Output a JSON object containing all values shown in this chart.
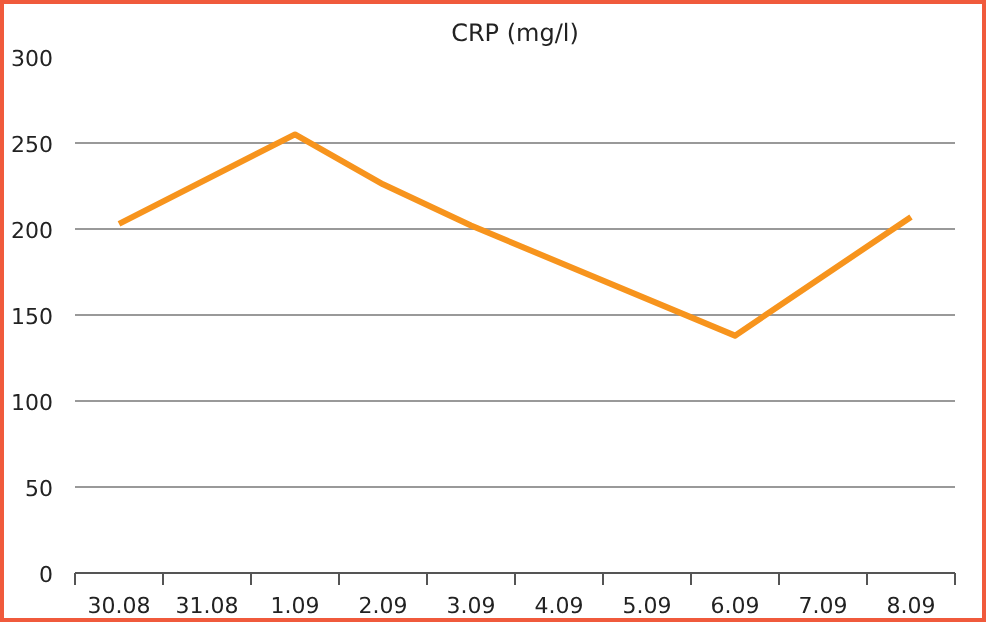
{
  "chart_data": {
    "type": "line",
    "title": "CRP (mg/l)",
    "categories": [
      "30.08",
      "31.08",
      "1.09",
      "2.09",
      "3.09",
      "4.09",
      "5.09",
      "6.09",
      "7.09",
      "8.09"
    ],
    "series": [
      {
        "color": "#f7941d",
        "values": [
          203,
          null,
          255,
          226,
          202,
          null,
          null,
          138,
          null,
          207
        ]
      }
    ],
    "ylim": [
      0,
      300
    ],
    "yticks": [
      0,
      50,
      100,
      150,
      200,
      250,
      300
    ],
    "grid": "y",
    "marker": "none",
    "line_style": "solid"
  }
}
